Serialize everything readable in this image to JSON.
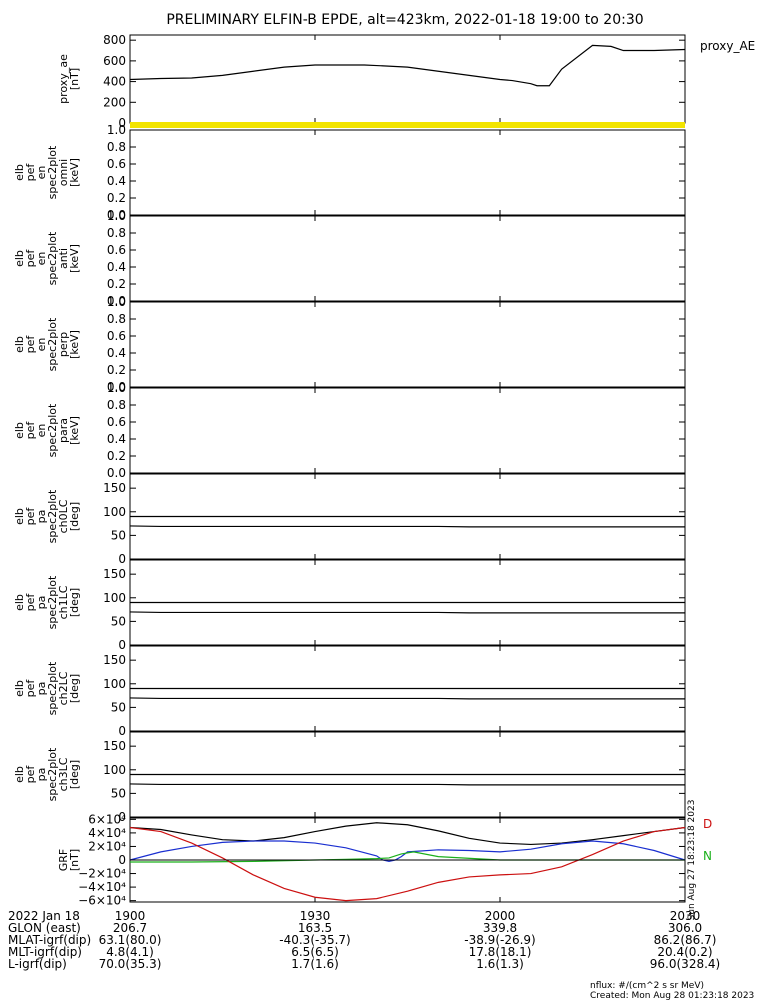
{
  "title": "PRELIMINARY ELFIN-B EPDE, alt=423km, 2022-01-18 19:00 to 20:30",
  "chart_data": [
    {
      "type": "line",
      "name": "proxy_ae",
      "ylabel": [
        "proxy_ae",
        "[nT]"
      ],
      "legend": "proxy_AE",
      "ylim": [
        0,
        850
      ],
      "yticks": [
        "0",
        "200",
        "400",
        "600",
        "800"
      ],
      "x": [
        0,
        5,
        10,
        15,
        20,
        25,
        30,
        35,
        38,
        40,
        45,
        50,
        55,
        60,
        62,
        65,
        66,
        68,
        70,
        75,
        78,
        80,
        85,
        90
      ],
      "values": [
        420,
        430,
        435,
        460,
        500,
        540,
        560,
        560,
        560,
        555,
        540,
        500,
        460,
        420,
        410,
        380,
        360,
        360,
        520,
        750,
        740,
        700,
        700,
        710
      ]
    },
    {
      "type": "line",
      "name": "elb_pef_en_spec2plot_omni",
      "ylabel": [
        "elb",
        "pef",
        "en",
        "spec2plot",
        "omni",
        "[keV]"
      ],
      "ylim": [
        0,
        1
      ],
      "yticks": [
        "0.0",
        "0.2",
        "0.4",
        "0.6",
        "0.8",
        "1.0"
      ],
      "values": []
    },
    {
      "type": "line",
      "name": "elb_pef_en_spec2plot_anti",
      "ylabel": [
        "elb",
        "pef",
        "en",
        "spec2plot",
        "anti",
        "[keV]"
      ],
      "ylim": [
        0,
        1
      ],
      "yticks": [
        "0.0",
        "0.2",
        "0.4",
        "0.6",
        "0.8",
        "1.0"
      ],
      "values": []
    },
    {
      "type": "line",
      "name": "elb_pef_en_spec2plot_perp",
      "ylabel": [
        "elb",
        "pef",
        "en",
        "spec2plot",
        "perp",
        "[keV]"
      ],
      "ylim": [
        0,
        1
      ],
      "yticks": [
        "0.0",
        "0.2",
        "0.4",
        "0.6",
        "0.8",
        "1.0"
      ],
      "values": []
    },
    {
      "type": "line",
      "name": "elb_pef_en_spec2plot_para",
      "ylabel": [
        "elb",
        "pef",
        "en",
        "spec2plot",
        "para",
        "[keV]"
      ],
      "ylim": [
        0,
        1
      ],
      "yticks": [
        "0.0",
        "0.2",
        "0.4",
        "0.6",
        "0.8",
        "1.0"
      ],
      "values": []
    },
    {
      "type": "line",
      "name": "elb_pef_pa_spec2plot_ch0LC",
      "ylabel": [
        "elb",
        "pef",
        "pa",
        "spec2plot",
        "ch0LC",
        "[deg]"
      ],
      "ylim": [
        0,
        180
      ],
      "yticks": [
        "0",
        "50",
        "100",
        "150"
      ],
      "series": [
        {
          "x": [
            0,
            90
          ],
          "values": [
            90,
            90
          ]
        },
        {
          "x": [
            0,
            5,
            50,
            55,
            90
          ],
          "values": [
            70,
            69,
            69,
            68,
            68
          ]
        }
      ]
    },
    {
      "type": "line",
      "name": "elb_pef_pa_spec2plot_ch1LC",
      "ylabel": [
        "elb",
        "pef",
        "pa",
        "spec2plot",
        "ch1LC",
        "[deg]"
      ],
      "ylim": [
        0,
        180
      ],
      "yticks": [
        "0",
        "50",
        "100",
        "150"
      ],
      "series": [
        {
          "x": [
            0,
            90
          ],
          "values": [
            90,
            90
          ]
        },
        {
          "x": [
            0,
            5,
            50,
            55,
            90
          ],
          "values": [
            70,
            69,
            69,
            68,
            68
          ]
        }
      ]
    },
    {
      "type": "line",
      "name": "elb_pef_pa_spec2plot_ch2LC",
      "ylabel": [
        "elb",
        "pef",
        "pa",
        "spec2plot",
        "ch2LC",
        "[deg]"
      ],
      "ylim": [
        0,
        180
      ],
      "yticks": [
        "0",
        "50",
        "100",
        "150"
      ],
      "series": [
        {
          "x": [
            0,
            90
          ],
          "values": [
            90,
            90
          ]
        },
        {
          "x": [
            0,
            5,
            50,
            55,
            90
          ],
          "values": [
            70,
            69,
            69,
            68,
            68
          ]
        }
      ]
    },
    {
      "type": "line",
      "name": "elb_pef_pa_spec2plot_ch3LC",
      "ylabel": [
        "elb",
        "pef",
        "pa",
        "spec2plot",
        "ch3LC",
        "[deg]"
      ],
      "ylim": [
        0,
        180
      ],
      "yticks": [
        "0",
        "50",
        "100",
        "150"
      ],
      "series": [
        {
          "x": [
            0,
            90
          ],
          "values": [
            90,
            90
          ]
        },
        {
          "x": [
            0,
            5,
            50,
            55,
            90
          ],
          "values": [
            70,
            69,
            69,
            68,
            68
          ]
        }
      ]
    },
    {
      "type": "line",
      "name": "GRF",
      "ylabel": [
        "GRF",
        "[nT]"
      ],
      "ylim": [
        -62000,
        62000
      ],
      "yticks": [
        "−6×10⁴",
        "−4×10⁴",
        "−2×10⁴",
        "0",
        "2×10⁴",
        "4×10⁴",
        "6×10⁴"
      ],
      "legend": [
        "D",
        "N"
      ],
      "series": [
        {
          "name": "black",
          "color": "#000000",
          "x": [
            0,
            5,
            10,
            15,
            20,
            25,
            30,
            35,
            40,
            45,
            50,
            55,
            60,
            65,
            70,
            75,
            80,
            85,
            90
          ],
          "values": [
            48000,
            45000,
            37000,
            30000,
            28000,
            33000,
            42000,
            50000,
            55000,
            52000,
            43000,
            32000,
            25000,
            23000,
            25000,
            30000,
            36000,
            42000,
            48000
          ]
        },
        {
          "name": "blue",
          "color": "#1a2fd0",
          "x": [
            0,
            5,
            10,
            15,
            20,
            25,
            30,
            35,
            40,
            41,
            42,
            43,
            44,
            45,
            50,
            55,
            60,
            65,
            70,
            75,
            80,
            85,
            90
          ],
          "values": [
            0,
            12000,
            20000,
            26000,
            28000,
            28000,
            25000,
            18000,
            6000,
            0,
            -2000,
            0,
            5000,
            12000,
            15000,
            14000,
            12000,
            16000,
            24000,
            28000,
            24000,
            14000,
            0
          ]
        },
        {
          "name": "green",
          "color": "#1bb01b",
          "x": [
            0,
            10,
            20,
            30,
            35,
            40,
            42,
            44,
            46,
            50,
            60,
            70,
            75,
            80,
            90
          ],
          "values": [
            -3000,
            -3000,
            -2000,
            0,
            1000,
            2000,
            3000,
            9000,
            12000,
            5000,
            0,
            0,
            0,
            0,
            0
          ]
        },
        {
          "name": "red",
          "color": "#cc1010",
          "x": [
            0,
            5,
            10,
            15,
            20,
            25,
            30,
            35,
            40,
            45,
            50,
            55,
            60,
            65,
            70,
            75,
            80,
            85,
            90
          ],
          "values": [
            48000,
            42000,
            25000,
            3000,
            -22000,
            -42000,
            -55000,
            -60000,
            -57000,
            -46000,
            -33000,
            -25000,
            -22000,
            -20000,
            -10000,
            8000,
            28000,
            42000,
            48000
          ]
        }
      ]
    }
  ],
  "xaxis": {
    "range": [
      0,
      90
    ],
    "ticks": [
      {
        "label": "1900",
        "t": 0
      },
      {
        "label": "1930",
        "t": 30
      },
      {
        "label": "2000",
        "t": 60
      },
      {
        "label": "2030",
        "t": 90
      }
    ]
  },
  "footer_rows": [
    [
      "2022 Jan 18",
      "1900",
      "1930",
      "2000",
      "2030"
    ],
    [
      "GLON (east)",
      "206.7",
      "163.5",
      "339.8",
      "306.0"
    ],
    [
      "MLAT-igrf(dip)",
      "63.1(80.0)",
      "-40.3(-35.7)",
      "-38.9(-26.9)",
      "86.2(86.7)"
    ],
    [
      "MLT-igrf(dip)",
      "4.8(4.1)",
      "6.5(6.5)",
      "17.8(18.1)",
      "20.4(0.2)"
    ],
    [
      "L-igrf(dip)",
      "70.0(35.3)",
      "1.7(1.6)",
      "1.6(1.3)",
      "96.0(328.4)"
    ]
  ],
  "nflux": "nflux: #/(cm^2 s sr MeV)",
  "created": "Created: Mon Aug 28 01:23:18 2023",
  "side_stamp": "Sun Aug 27 18:23:18 2023"
}
